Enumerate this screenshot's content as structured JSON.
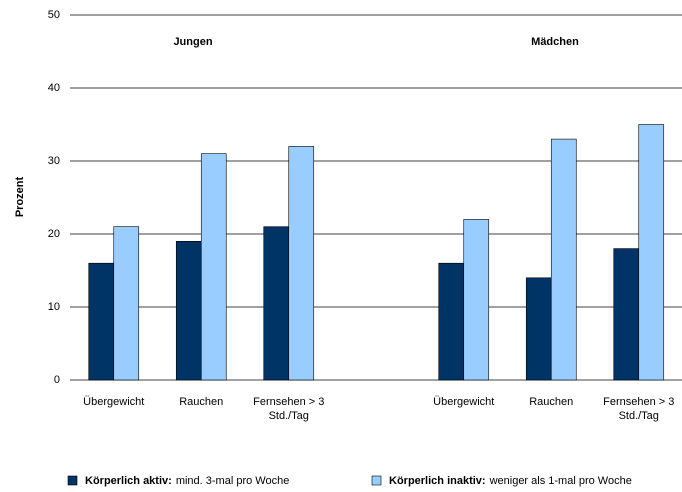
{
  "chart_data": {
    "type": "bar",
    "y_label": "Prozent",
    "annotations": [
      "Jungen",
      "Mädchen"
    ],
    "categories": [
      "Übergewicht",
      "Rauchen",
      "Fernsehen > 3 Std./Tag",
      null,
      "Übergewicht",
      "Rauchen",
      "Fernsehen > 3 Std./Tag"
    ],
    "series": [
      {
        "name": "Körperlich aktiv:",
        "description": "mind. 3-mal pro Woche",
        "color": "#003366",
        "values": [
          16,
          19,
          21,
          null,
          16,
          14,
          18
        ]
      },
      {
        "name": "Körperlich inaktiv:",
        "description": "weniger als 1-mal pro Woche",
        "color": "#99ccff",
        "values": [
          21,
          31,
          32,
          null,
          22,
          33,
          35
        ]
      }
    ],
    "ylim": [
      0,
      50
    ],
    "yticks": [
      0,
      10,
      20,
      30,
      40,
      50
    ],
    "grid": true
  }
}
